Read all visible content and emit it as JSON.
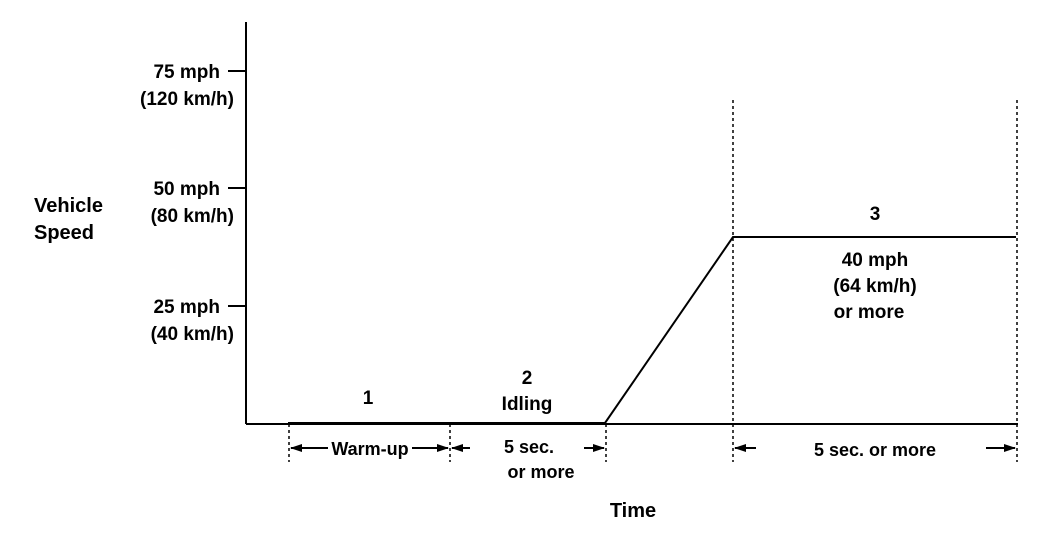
{
  "y_axis": {
    "label_lines": [
      "Vehicle",
      "Speed"
    ],
    "ticks": [
      {
        "speed_mph": 75,
        "label": "75 mph",
        "sub_label": "(120 km/h)"
      },
      {
        "speed_mph": 50,
        "label": "50 mph",
        "sub_label": "(80 km/h)"
      },
      {
        "speed_mph": 25,
        "label": "25 mph",
        "sub_label": "(40 km/h)"
      }
    ]
  },
  "x_axis": {
    "label": "Time"
  },
  "phases": [
    {
      "number": "1",
      "name": "",
      "duration_label": "Warm-up"
    },
    {
      "number": "2",
      "name": "Idling",
      "duration_lines": [
        "5 sec.",
        "or  more"
      ]
    },
    {
      "number": "3",
      "speed_lines": [
        "40 mph",
        "(64 km/h)",
        "or more"
      ],
      "duration_label": "5 sec. or  more"
    }
  ],
  "profile": {
    "cruise_speed_mph": 40
  }
}
